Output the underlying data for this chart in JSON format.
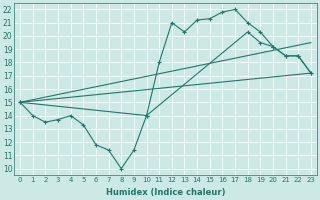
{
  "xlabel": "Humidex (Indice chaleur)",
  "bg_color": "#cce9e5",
  "grid_color": "#ffffff",
  "line_color": "#1a7a6e",
  "xlim": [
    -0.5,
    23.5
  ],
  "ylim": [
    9.5,
    22.5
  ],
  "xticks": [
    0,
    1,
    2,
    3,
    4,
    5,
    6,
    7,
    8,
    9,
    10,
    11,
    12,
    13,
    14,
    15,
    16,
    17,
    18,
    19,
    20,
    21,
    22,
    23
  ],
  "yticks": [
    10,
    11,
    12,
    13,
    14,
    15,
    16,
    17,
    18,
    19,
    20,
    21,
    22
  ],
  "line1_x": [
    0,
    1,
    2,
    3,
    4,
    5,
    6,
    7,
    8,
    9,
    10,
    11,
    12,
    13,
    14,
    15,
    16,
    17,
    18,
    19,
    20,
    21,
    22,
    23
  ],
  "line1_y": [
    15,
    14,
    13.5,
    13.7,
    14,
    13.3,
    11.8,
    11.4,
    10,
    11.4,
    14,
    18,
    21,
    20.3,
    21.2,
    21.3,
    21.8,
    22,
    21,
    20.3,
    19.2,
    18.5,
    18.5,
    17.2
  ],
  "line2_x": [
    0,
    23
  ],
  "line2_y": [
    15,
    19.5
  ],
  "line3_x": [
    0,
    23
  ],
  "line3_y": [
    15,
    17.2
  ],
  "line4_x": [
    0,
    10,
    18,
    19,
    20,
    21,
    22,
    23
  ],
  "line4_y": [
    15,
    14,
    20.3,
    19.5,
    19.2,
    18.5,
    18.5,
    17.2
  ]
}
